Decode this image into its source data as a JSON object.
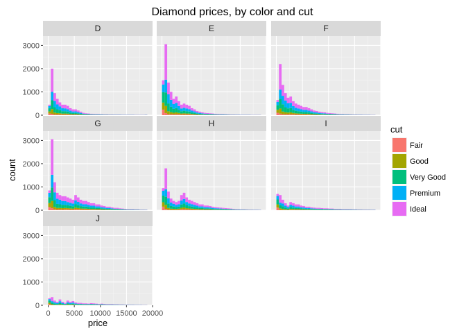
{
  "chart_data": {
    "type": "bar",
    "subtype": "stacked-histogram-facets",
    "title": "Diamond prices, by color and cut",
    "xlabel": "price",
    "ylabel": "count",
    "xlim": [
      -1000,
      20000
    ],
    "ylim": [
      0,
      3400
    ],
    "x_ticks": [
      "0",
      "5000",
      "10000",
      "15000",
      "20000"
    ],
    "x_tick_values": [
      0,
      5000,
      10000,
      15000,
      20000
    ],
    "y_ticks": [
      "0",
      "1000",
      "2000",
      "3000"
    ],
    "y_tick_values": [
      0,
      1000,
      2000,
      3000
    ],
    "bin_width": 500,
    "bin_starts": [
      0,
      500,
      1000,
      1500,
      2000,
      2500,
      3000,
      3500,
      4000,
      4500,
      5000,
      5500,
      6000,
      6500,
      7000,
      7500,
      8000,
      8500,
      9000,
      9500,
      10000,
      10500,
      11000,
      11500,
      12000,
      12500,
      13000,
      13500,
      14000,
      14500,
      15000,
      15500,
      16000,
      16500,
      17000,
      17500,
      18000,
      18500
    ],
    "series_names": [
      "Fair",
      "Good",
      "Very Good",
      "Premium",
      "Ideal"
    ],
    "series_colors": [
      "#F8766D",
      "#A3A500",
      "#00BF7D",
      "#00B0F6",
      "#E76BF3"
    ],
    "facets": [
      {
        "label": "D",
        "totals": [
          450,
          2000,
          950,
          700,
          550,
          450,
          450,
          400,
          300,
          250,
          250,
          200,
          150,
          100,
          80,
          70,
          60,
          55,
          50,
          45,
          40,
          35,
          35,
          30,
          30,
          25,
          25,
          25,
          20,
          20,
          20,
          20,
          20,
          15,
          15,
          15,
          15,
          20
        ]
      },
      {
        "label": "E",
        "totals": [
          1500,
          3050,
          1400,
          1000,
          700,
          800,
          600,
          450,
          500,
          450,
          400,
          300,
          250,
          180,
          150,
          120,
          100,
          90,
          80,
          70,
          60,
          55,
          50,
          45,
          40,
          35,
          30,
          30,
          25,
          25,
          20,
          20,
          20,
          20,
          15,
          15,
          15,
          15
        ]
      },
      {
        "label": "F",
        "totals": [
          650,
          2200,
          1300,
          950,
          750,
          800,
          600,
          500,
          450,
          400,
          350,
          350,
          300,
          250,
          200,
          180,
          150,
          130,
          120,
          100,
          90,
          80,
          70,
          60,
          50,
          45,
          40,
          40,
          35,
          30,
          30,
          25,
          25,
          20,
          20,
          20,
          15,
          15
        ]
      },
      {
        "label": "G",
        "totals": [
          850,
          3050,
          1200,
          750,
          650,
          600,
          600,
          550,
          500,
          450,
          650,
          550,
          450,
          400,
          400,
          350,
          300,
          300,
          250,
          250,
          200,
          180,
          150,
          150,
          120,
          100,
          100,
          80,
          70,
          60,
          50,
          50,
          50,
          40,
          40,
          30,
          30,
          25
        ]
      },
      {
        "label": "H",
        "totals": [
          950,
          1800,
          800,
          500,
          400,
          350,
          400,
          650,
          750,
          550,
          450,
          400,
          350,
          300,
          250,
          250,
          200,
          200,
          180,
          150,
          130,
          120,
          110,
          100,
          90,
          80,
          70,
          60,
          50,
          45,
          40,
          40,
          35,
          30,
          30,
          25,
          25,
          20
        ]
      },
      {
        "label": "I",
        "totals": [
          700,
          650,
          450,
          300,
          200,
          350,
          300,
          250,
          250,
          200,
          180,
          150,
          150,
          120,
          110,
          100,
          100,
          90,
          80,
          80,
          70,
          70,
          60,
          60,
          60,
          50,
          50,
          50,
          45,
          40,
          40,
          35,
          35,
          30,
          30,
          30,
          25,
          25
        ]
      },
      {
        "label": "J",
        "totals": [
          300,
          350,
          200,
          150,
          250,
          150,
          100,
          200,
          150,
          180,
          120,
          100,
          100,
          80,
          80,
          70,
          90,
          80,
          70,
          60,
          70,
          60,
          50,
          50,
          50,
          40,
          40,
          35,
          35,
          30,
          30,
          25,
          25,
          20,
          20,
          20,
          15,
          15
        ]
      }
    ],
    "cut_shares": [
      [
        0.16,
        0.2,
        0.3,
        0.22,
        0.12
      ],
      [
        0.03,
        0.1,
        0.19,
        0.18,
        0.5
      ],
      [
        0.03,
        0.09,
        0.24,
        0.28,
        0.36
      ],
      [
        0.04,
        0.09,
        0.23,
        0.3,
        0.34
      ],
      [
        0.05,
        0.1,
        0.24,
        0.3,
        0.31
      ],
      [
        0.05,
        0.1,
        0.23,
        0.28,
        0.34
      ],
      [
        0.06,
        0.1,
        0.22,
        0.27,
        0.35
      ],
      [
        0.06,
        0.1,
        0.22,
        0.26,
        0.36
      ],
      [
        0.06,
        0.1,
        0.22,
        0.26,
        0.36
      ],
      [
        0.06,
        0.1,
        0.22,
        0.26,
        0.36
      ],
      [
        0.07,
        0.1,
        0.22,
        0.26,
        0.35
      ]
    ],
    "legend": {
      "title": "cut",
      "entries": [
        "Fair",
        "Good",
        "Very Good",
        "Premium",
        "Ideal"
      ],
      "position": "right"
    },
    "grid": true
  }
}
